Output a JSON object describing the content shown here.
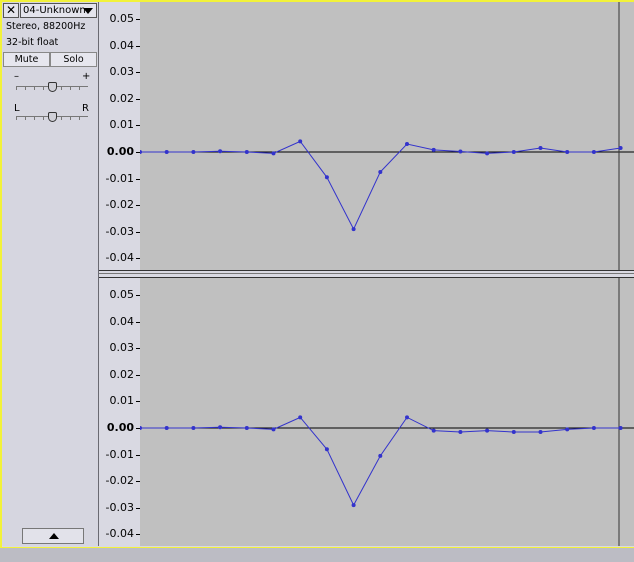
{
  "track": {
    "name": "04-Unknown",
    "info_line1": "Stereo, 88200Hz",
    "info_line2": "32-bit float",
    "mute_label": "Mute",
    "solo_label": "Solo",
    "gain_minus": "–",
    "gain_plus": "+",
    "pan_left": "L",
    "pan_right": "R",
    "gain_level": 0.5,
    "pan_level": 0.5
  },
  "ruler_labels": [
    "0.05-",
    "0.04-",
    "0.03-",
    "0.02-",
    "0.01-",
    "0.00-",
    "-0.01-",
    "-0.02-",
    "-0.03-",
    "-0.04-"
  ],
  "ruler_values": [
    0.05,
    0.04,
    0.03,
    0.02,
    0.01,
    0.0,
    -0.01,
    -0.02,
    -0.03,
    -0.04
  ],
  "colors": {
    "waveform": "#3333cc",
    "background": "#c0c0c0",
    "selection_border": "#f2f23a"
  },
  "channels": [
    {
      "name": "left",
      "samples": [
        0.0,
        0.0,
        0.0,
        0.0003,
        0.0,
        -0.0005,
        0.004,
        -0.0095,
        -0.029,
        -0.0075,
        0.003,
        0.0008,
        0.0002,
        -0.0005,
        0.0,
        0.0015,
        0.0,
        0.0,
        0.0015
      ]
    },
    {
      "name": "right",
      "samples": [
        0.0,
        0.0,
        0.0,
        0.0003,
        0.0,
        -0.0005,
        0.004,
        -0.008,
        -0.029,
        -0.0105,
        0.004,
        -0.001,
        -0.0015,
        -0.001,
        -0.0015,
        -0.0015,
        -0.0005,
        0.0,
        0.0
      ]
    }
  ]
}
